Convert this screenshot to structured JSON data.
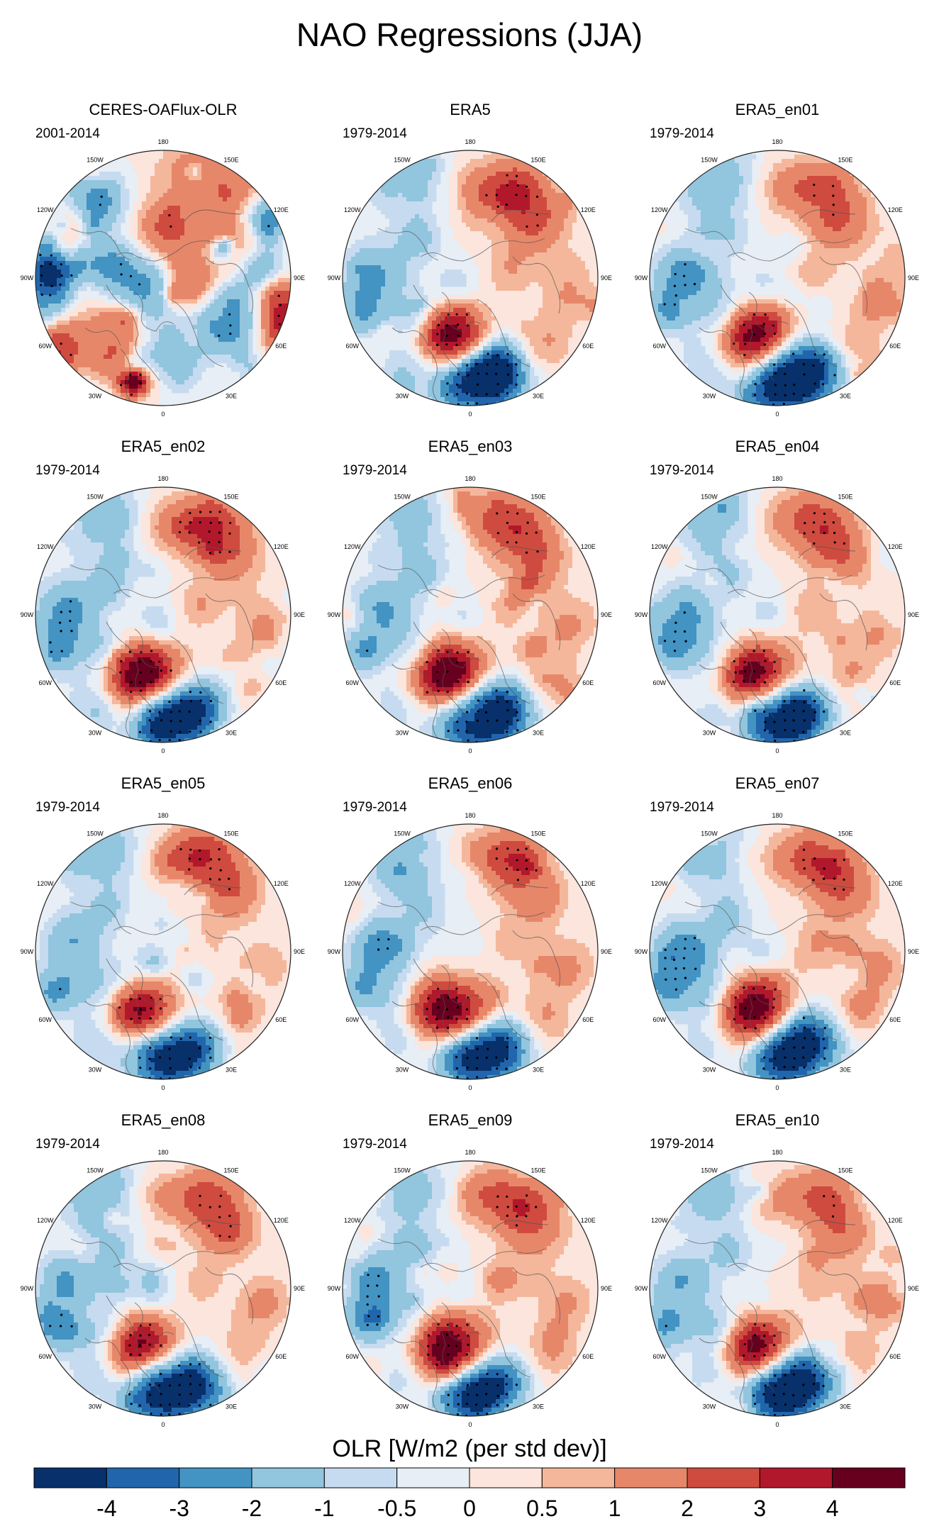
{
  "figure": {
    "title": "NAO Regressions (JJA)"
  },
  "colorbar": {
    "label": "OLR [W/m2 (per std dev)]",
    "tick_labels": [
      "-4",
      "-3",
      "-2",
      "-1",
      "-0.5",
      "0",
      "0.5",
      "1",
      "2",
      "3",
      "4"
    ],
    "colors": [
      "#08306b",
      "#2166ac",
      "#4393c3",
      "#92c5de",
      "#c6dbef",
      "#e7eef5",
      "#fbe5dc",
      "#f4b79b",
      "#e7876a",
      "#cf4b3f",
      "#b2182b",
      "#67001f"
    ]
  },
  "chart_data": {
    "type": "heatmap",
    "title": "NAO Regressions (JJA)",
    "projection": "north-polar-stereographic",
    "variable": "OLR [W/m2 (per std dev)]",
    "levels": [
      -4,
      -3,
      -2,
      -1,
      -0.5,
      0,
      0.5,
      1,
      2,
      3,
      4
    ],
    "longitude_labels": [
      "180",
      "150E",
      "120E",
      "90E",
      "60E",
      "30E",
      "0",
      "30W",
      "60W",
      "90W",
      "120W",
      "150W"
    ],
    "panels": [
      {
        "name": "CERES-OAFlux-OLR",
        "period": "2001-2014",
        "variant": "obs"
      },
      {
        "name": "ERA5",
        "period": "1979-2014",
        "variant": "era"
      },
      {
        "name": "ERA5_en01",
        "period": "1979-2014",
        "variant": "era"
      },
      {
        "name": "ERA5_en02",
        "period": "1979-2014",
        "variant": "era"
      },
      {
        "name": "ERA5_en03",
        "period": "1979-2014",
        "variant": "era"
      },
      {
        "name": "ERA5_en04",
        "period": "1979-2014",
        "variant": "era"
      },
      {
        "name": "ERA5_en05",
        "period": "1979-2014",
        "variant": "era"
      },
      {
        "name": "ERA5_en06",
        "period": "1979-2014",
        "variant": "era"
      },
      {
        "name": "ERA5_en07",
        "period": "1979-2014",
        "variant": "era"
      },
      {
        "name": "ERA5_en08",
        "period": "1979-2014",
        "variant": "era"
      },
      {
        "name": "ERA5_en09",
        "period": "1979-2014",
        "variant": "era"
      },
      {
        "name": "ERA5_en10",
        "period": "1979-2014",
        "variant": "era"
      }
    ]
  }
}
